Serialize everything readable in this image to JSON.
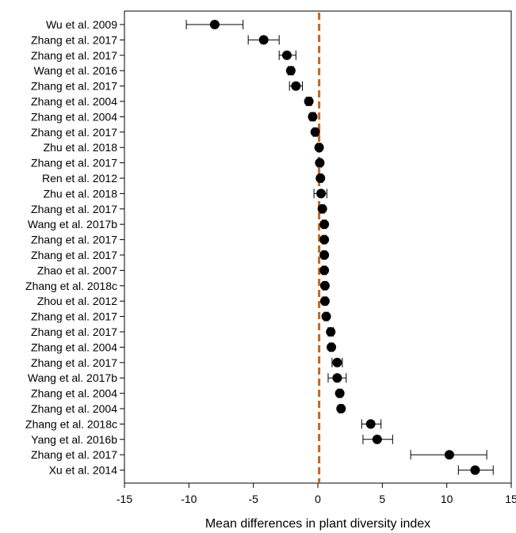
{
  "chart_data": {
    "type": "scatter",
    "title": "",
    "xlabel": "Mean differences in plant diversity index",
    "ylabel": "",
    "xlim": [
      -15,
      15
    ],
    "xticks": [
      -15,
      -10,
      -5,
      0,
      5,
      10,
      15
    ],
    "grid": false,
    "legend": "none",
    "reference_line": {
      "x": 0.1,
      "style": "dashed",
      "color": "#c8651b"
    },
    "colors": {
      "marker": "#000000",
      "axis": "#000000"
    },
    "studies": [
      {
        "label": "Wu et al. 2009",
        "mean": -8.0,
        "ci_low": -10.2,
        "ci_high": -5.8
      },
      {
        "label": "Zhang et al. 2017",
        "mean": -4.2,
        "ci_low": -5.4,
        "ci_high": -3.0
      },
      {
        "label": "Zhang et al. 2017",
        "mean": -2.4,
        "ci_low": -3.0,
        "ci_high": -1.7
      },
      {
        "label": "Wang et al. 2016",
        "mean": -2.1,
        "ci_low": -2.3,
        "ci_high": -1.9
      },
      {
        "label": "Zhang et al. 2017",
        "mean": -1.7,
        "ci_low": -2.2,
        "ci_high": -1.2
      },
      {
        "label": "Zhang et al. 2004",
        "mean": -0.7,
        "ci_low": -0.9,
        "ci_high": -0.5
      },
      {
        "label": "Zhang et al. 2004",
        "mean": -0.4,
        "ci_low": -0.6,
        "ci_high": -0.2
      },
      {
        "label": "Zhang et al. 2017",
        "mean": -0.2,
        "ci_low": -0.35,
        "ci_high": -0.05
      },
      {
        "label": "Zhu et al. 2018",
        "mean": 0.1,
        "ci_low": -0.05,
        "ci_high": 0.25
      },
      {
        "label": "Zhang et al. 2017",
        "mean": 0.15,
        "ci_low": 0.0,
        "ci_high": 0.3
      },
      {
        "label": "Ren et al. 2012",
        "mean": 0.2,
        "ci_low": 0.05,
        "ci_high": 0.35
      },
      {
        "label": "Zhu et al. 2018",
        "mean": 0.25,
        "ci_low": -0.3,
        "ci_high": 0.7
      },
      {
        "label": "Zhang et al. 2017",
        "mean": 0.35,
        "ci_low": 0.2,
        "ci_high": 0.5
      },
      {
        "label": "Wang et al. 2017b",
        "mean": 0.5,
        "ci_low": 0.35,
        "ci_high": 0.65
      },
      {
        "label": "Zhang et al. 2017",
        "mean": 0.5,
        "ci_low": 0.35,
        "ci_high": 0.65
      },
      {
        "label": "Zhang et al. 2017",
        "mean": 0.5,
        "ci_low": 0.35,
        "ci_high": 0.65
      },
      {
        "label": "Zhao et al. 2007",
        "mean": 0.5,
        "ci_low": 0.35,
        "ci_high": 0.65
      },
      {
        "label": "Zhang et al. 2018c",
        "mean": 0.55,
        "ci_low": 0.4,
        "ci_high": 0.7
      },
      {
        "label": "Zhou et al. 2012",
        "mean": 0.55,
        "ci_low": 0.4,
        "ci_high": 0.7
      },
      {
        "label": "Zhang et al. 2017",
        "mean": 0.65,
        "ci_low": 0.5,
        "ci_high": 0.8
      },
      {
        "label": "Zhang et al. 2017",
        "mean": 1.0,
        "ci_low": 0.8,
        "ci_high": 1.2
      },
      {
        "label": "Zhang et al. 2004",
        "mean": 1.05,
        "ci_low": 0.9,
        "ci_high": 1.2
      },
      {
        "label": "Zhang et al. 2017",
        "mean": 1.5,
        "ci_low": 1.1,
        "ci_high": 1.9
      },
      {
        "label": "Wang et al. 2017b",
        "mean": 1.5,
        "ci_low": 0.8,
        "ci_high": 2.2
      },
      {
        "label": "Zhang et al. 2004",
        "mean": 1.7,
        "ci_low": 1.55,
        "ci_high": 1.85
      },
      {
        "label": "Zhang et al. 2004",
        "mean": 1.8,
        "ci_low": 1.65,
        "ci_high": 1.95
      },
      {
        "label": "Zhang et al. 2018c",
        "mean": 4.1,
        "ci_low": 3.4,
        "ci_high": 4.9
      },
      {
        "label": "Yang et al. 2016b",
        "mean": 4.6,
        "ci_low": 3.5,
        "ci_high": 5.8
      },
      {
        "label": "Zhang et al. 2017",
        "mean": 10.2,
        "ci_low": 7.2,
        "ci_high": 13.1
      },
      {
        "label": "Xu et al. 2014",
        "mean": 12.2,
        "ci_low": 10.9,
        "ci_high": 13.6
      }
    ]
  }
}
